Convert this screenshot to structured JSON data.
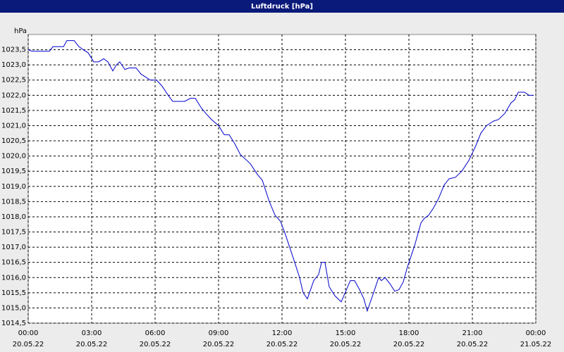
{
  "chart_data": {
    "type": "line",
    "title": "Luftdruck [hPa]",
    "y_label": "hPa",
    "x": [
      0,
      0.17,
      1.0,
      1.17,
      1.67,
      1.83,
      2.17,
      2.4,
      2.6,
      2.83,
      3.1,
      3.33,
      3.57,
      3.77,
      4.0,
      4.17,
      4.33,
      4.57,
      4.77,
      5.1,
      5.33,
      5.77,
      6.07,
      6.33,
      6.57,
      6.83,
      7.4,
      7.67,
      7.9,
      8.17,
      8.4,
      8.67,
      9.0,
      9.27,
      9.5,
      9.77,
      10.03,
      10.5,
      10.83,
      11.07,
      11.4,
      11.67,
      11.93,
      12.17,
      12.6,
      12.83,
      13.0,
      13.2,
      13.5,
      13.73,
      13.87,
      14.03,
      14.23,
      14.5,
      14.8,
      15.23,
      15.43,
      15.67,
      15.87,
      16.03,
      16.33,
      16.57,
      16.7,
      16.87,
      17.1,
      17.33,
      17.53,
      17.73,
      17.93,
      18.27,
      18.57,
      18.73,
      18.93,
      19.17,
      19.4,
      19.67,
      19.9,
      20.2,
      20.5,
      20.83,
      21.17,
      21.4,
      21.67,
      22.0,
      22.23,
      22.53,
      22.83,
      23.0,
      23.17,
      23.47,
      23.67,
      23.9
    ],
    "series": [
      {
        "name": "Luftdruck",
        "color": "#0000cc",
        "values": [
          1023.5,
          1023.45,
          1023.45,
          1023.6,
          1023.6,
          1023.8,
          1023.8,
          1023.6,
          1023.5,
          1023.4,
          1023.1,
          1023.1,
          1023.2,
          1023.1,
          1022.8,
          1023.0,
          1023.1,
          1022.85,
          1022.9,
          1022.9,
          1022.7,
          1022.5,
          1022.5,
          1022.3,
          1022.05,
          1021.8,
          1021.8,
          1021.9,
          1021.9,
          1021.6,
          1021.4,
          1021.2,
          1021.0,
          1020.7,
          1020.7,
          1020.4,
          1020.05,
          1019.75,
          1019.4,
          1019.2,
          1018.5,
          1018.05,
          1017.85,
          1017.4,
          1016.5,
          1016.0,
          1015.5,
          1015.3,
          1015.9,
          1016.1,
          1016.5,
          1016.5,
          1015.7,
          1015.4,
          1015.2,
          1015.9,
          1015.9,
          1015.6,
          1015.3,
          1014.9,
          1015.5,
          1016.0,
          1015.9,
          1016.0,
          1015.8,
          1015.55,
          1015.6,
          1015.85,
          1016.35,
          1017.05,
          1017.8,
          1017.95,
          1018.05,
          1018.3,
          1018.6,
          1019.05,
          1019.25,
          1019.3,
          1019.5,
          1019.85,
          1020.35,
          1020.75,
          1021.0,
          1021.15,
          1021.2,
          1021.4,
          1021.75,
          1021.85,
          1022.1,
          1022.1,
          1022.0,
          1022.0
        ]
      }
    ],
    "xlim": [
      0,
      24
    ],
    "xticks": [
      {
        "value": 0,
        "label": "00:00"
      },
      {
        "value": 3,
        "label": "03:00"
      },
      {
        "value": 6,
        "label": "06:00"
      },
      {
        "value": 9,
        "label": "09:00"
      },
      {
        "value": 12,
        "label": "12:00"
      },
      {
        "value": 15,
        "label": "15:00"
      },
      {
        "value": 18,
        "label": "18:00"
      },
      {
        "value": 21,
        "label": "21:00"
      },
      {
        "value": 24,
        "label": "00:00"
      }
    ],
    "xtick_dates": [
      "20.05.22",
      "20.05.22",
      "20.05.22",
      "20.05.22",
      "20.05.22",
      "20.05.22",
      "20.05.22",
      "20.05.22",
      "21.05.22"
    ],
    "ylim": [
      1014.5,
      1024.0
    ],
    "yticks": [
      {
        "value": 1014.5,
        "label": "1014,5"
      },
      {
        "value": 1015,
        "label": "1015,0"
      },
      {
        "value": 1015.5,
        "label": "1015,5"
      },
      {
        "value": 1016,
        "label": "1016,0"
      },
      {
        "value": 1016.5,
        "label": "1016,5"
      },
      {
        "value": 1017,
        "label": "1017,0"
      },
      {
        "value": 1017.5,
        "label": "1017,5"
      },
      {
        "value": 1018,
        "label": "1018,0"
      },
      {
        "value": 1018.5,
        "label": "1018,5"
      },
      {
        "value": 1019,
        "label": "1019,0"
      },
      {
        "value": 1019.5,
        "label": "1019,5"
      },
      {
        "value": 1020,
        "label": "1020,0"
      },
      {
        "value": 1020.5,
        "label": "1020,5"
      },
      {
        "value": 1021,
        "label": "1021,0"
      },
      {
        "value": 1021.5,
        "label": "1021,5"
      },
      {
        "value": 1022,
        "label": "1022,0"
      },
      {
        "value": 1022.5,
        "label": "1022,5"
      },
      {
        "value": 1023,
        "label": "1023,0"
      },
      {
        "value": 1023.5,
        "label": "1023,5"
      }
    ],
    "grid": true
  }
}
